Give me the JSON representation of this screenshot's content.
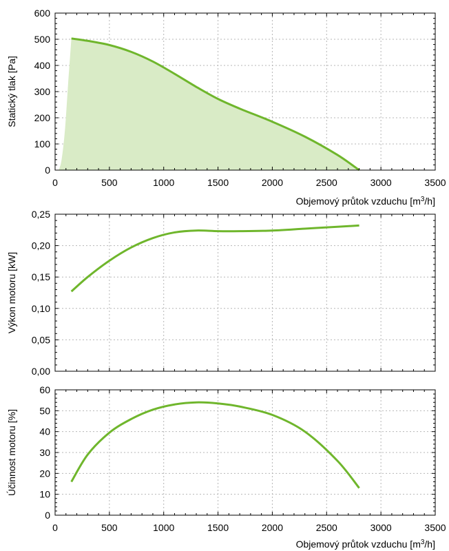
{
  "colors": {
    "line": "#6fb62c",
    "fill": "#d9ebc6"
  },
  "chart_data": [
    {
      "type": "area",
      "xlabel": "Objemový průtok vzduchu [m³/h]",
      "xlabel_main": "Objemový průtok vzduchu [m",
      "xlabel_sup": "3",
      "xlabel_tail": "/h]",
      "ylabel": "Statický tlak [Pa]",
      "xlim": [
        0,
        3500
      ],
      "ylim": [
        0,
        600
      ],
      "xticks": [
        0,
        500,
        1000,
        1500,
        2000,
        2500,
        3000,
        3500
      ],
      "xtick_labels": [
        "0",
        "500",
        "1000",
        "1500",
        "2000",
        "2500",
        "3000",
        "3500"
      ],
      "yticks": [
        0,
        100,
        200,
        300,
        400,
        500,
        600
      ],
      "ytick_labels": [
        "0",
        "100",
        "200",
        "300",
        "400",
        "500",
        "600"
      ],
      "grid": true,
      "series": [
        {
          "x": [
            150,
            300,
            500,
            700,
            900,
            1100,
            1300,
            1500,
            1700,
            2000,
            2300,
            2600,
            2800
          ],
          "y": [
            503,
            494,
            478,
            452,
            415,
            368,
            318,
            272,
            235,
            185,
            128,
            58,
            0
          ]
        }
      ],
      "area_left_edge": {
        "x": [
          35,
          60,
          90,
          120,
          150
        ],
        "y": [
          0,
          40,
          150,
          330,
          503
        ]
      }
    },
    {
      "type": "line",
      "ylabel": "Výkon motoru [kW]",
      "xlim": [
        0,
        3500
      ],
      "ylim": [
        0,
        0.25
      ],
      "xticks": [
        0,
        500,
        1000,
        1500,
        2000,
        2500,
        3000,
        3500
      ],
      "yticks": [
        0,
        0.05,
        0.1,
        0.15,
        0.2,
        0.25
      ],
      "ytick_labels": [
        "0,00",
        "0,05",
        "0,10",
        "0,15",
        "0,20",
        "0,25"
      ],
      "grid": true,
      "series": [
        {
          "x": [
            150,
            300,
            500,
            700,
            900,
            1100,
            1300,
            1500,
            1700,
            2000,
            2300,
            2600,
            2800
          ],
          "y": [
            0.127,
            0.15,
            0.176,
            0.197,
            0.212,
            0.221,
            0.224,
            0.223,
            0.223,
            0.224,
            0.227,
            0.23,
            0.232
          ]
        }
      ]
    },
    {
      "type": "line",
      "xlabel": "Objemový průtok vzduchu [m³/h]",
      "xlabel_main": "Objemový průtok vzduchu [m",
      "xlabel_sup": "3",
      "xlabel_tail": "/h]",
      "ylabel": "Účinnost motoru [%]",
      "xlim": [
        0,
        3500
      ],
      "ylim": [
        0,
        60
      ],
      "xticks": [
        0,
        500,
        1000,
        1500,
        2000,
        2500,
        3000,
        3500
      ],
      "xtick_labels": [
        "0",
        "500",
        "1000",
        "1500",
        "2000",
        "2500",
        "3000",
        "3500"
      ],
      "yticks": [
        0,
        10,
        20,
        30,
        40,
        50,
        60
      ],
      "ytick_labels": [
        "0",
        "10",
        "20",
        "30",
        "40",
        "50",
        "60"
      ],
      "grid": true,
      "series": [
        {
          "x": [
            150,
            300,
            500,
            700,
            900,
            1100,
            1300,
            1500,
            1700,
            2000,
            2300,
            2600,
            2800
          ],
          "y": [
            16,
            29,
            39.5,
            46,
            50.5,
            53,
            54,
            53.5,
            52,
            48,
            40,
            26,
            13
          ]
        }
      ]
    }
  ]
}
